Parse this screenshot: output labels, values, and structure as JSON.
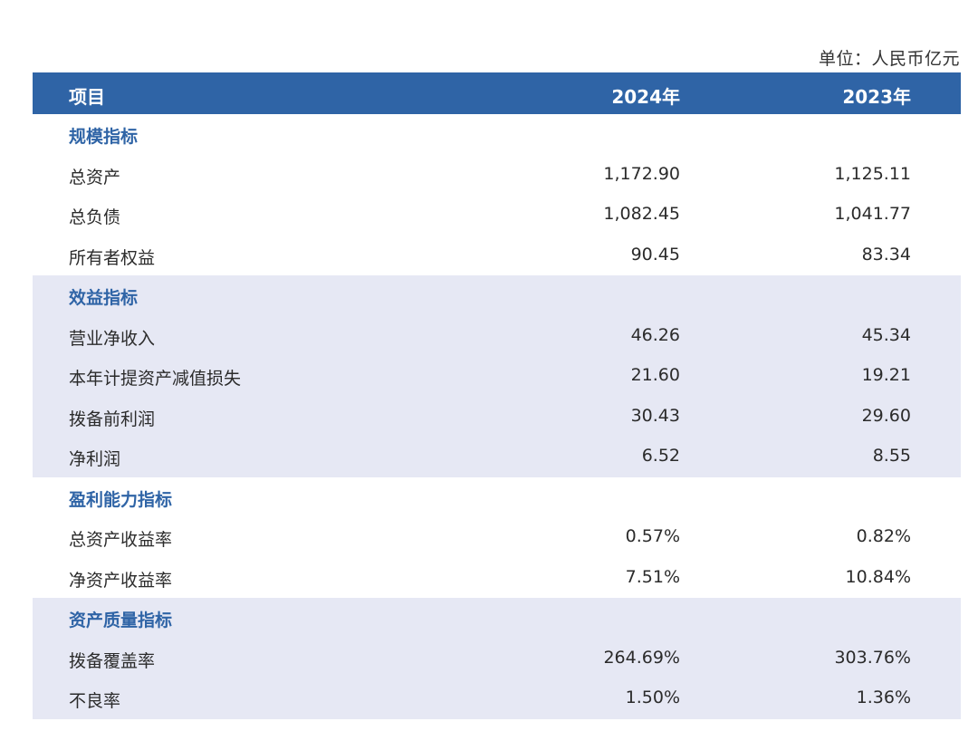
{
  "unit_label": "单位：人民币亿元",
  "header": {
    "col_item": "项目",
    "col_2024": "2024年",
    "col_2023": "2023年"
  },
  "sections": [
    {
      "title": "规模指标",
      "shaded": false,
      "rows": [
        {
          "label": "总资产",
          "v2024": "1,172.90",
          "v2023": "1,125.11"
        },
        {
          "label": "总负债",
          "v2024": "1,082.45",
          "v2023": "1,041.77"
        },
        {
          "label": "所有者权益",
          "v2024": "90.45",
          "v2023": "83.34"
        }
      ]
    },
    {
      "title": "效益指标",
      "shaded": true,
      "rows": [
        {
          "label": "营业净收入",
          "v2024": "46.26",
          "v2023": "45.34"
        },
        {
          "label": "本年计提资产减值损失",
          "v2024": "21.60",
          "v2023": "19.21"
        },
        {
          "label": "拨备前利润",
          "v2024": "30.43",
          "v2023": "29.60"
        },
        {
          "label": "净利润",
          "v2024": "6.52",
          "v2023": "8.55"
        }
      ]
    },
    {
      "title": "盈利能力指标",
      "shaded": false,
      "rows": [
        {
          "label": "总资产收益率",
          "v2024": "0.57%",
          "v2023": "0.82%"
        },
        {
          "label": "净资产收益率",
          "v2024": "7.51%",
          "v2023": "10.84%"
        }
      ]
    },
    {
      "title": "资产质量指标",
      "shaded": true,
      "rows": [
        {
          "label": "拨备覆盖率",
          "v2024": "264.69%",
          "v2023": "303.76%"
        },
        {
          "label": "不良率",
          "v2024": "1.50%",
          "v2023": "1.36%"
        }
      ]
    }
  ]
}
